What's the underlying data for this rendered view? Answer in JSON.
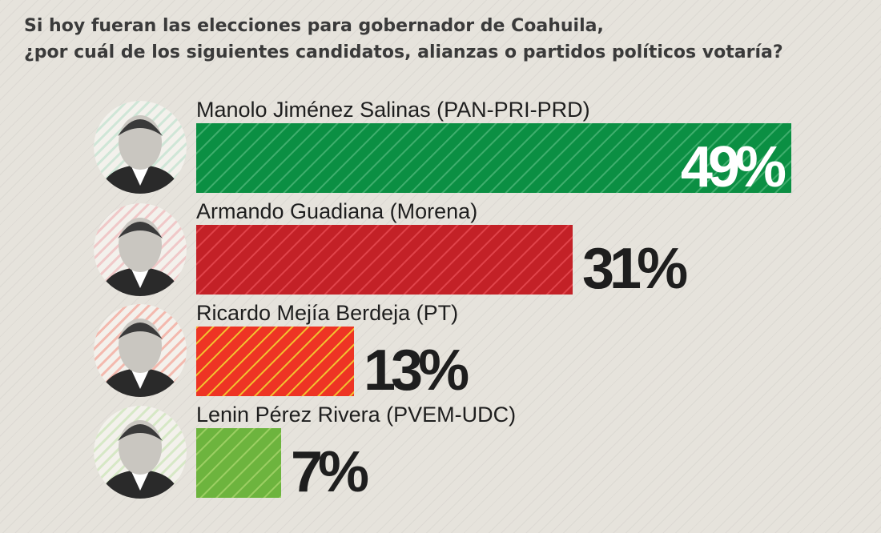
{
  "title_lines": [
    "Si hoy fueran las elecciones para gobernador de Coahuila,",
    "¿por cuál de los siguientes candidatos, alianzas o partidos políticos votaría?"
  ],
  "chart_data": {
    "type": "bar",
    "orientation": "horizontal",
    "title": "Si hoy fueran las elecciones para gobernador de Coahuila, ¿por cuál de los siguientes candidatos, alianzas o partidos políticos votaría?",
    "categories": [
      "Manolo Jiménez Salinas (PAN-PRI-PRD)",
      "Armando Guadiana (Morena)",
      "Ricardo Mejía Berdeja (PT)",
      "Lenin Pérez Rivera (PVEM-UDC)"
    ],
    "values": [
      49,
      31,
      13,
      7
    ],
    "value_labels": [
      "49%",
      "31%",
      "13%",
      "7%"
    ],
    "unit": "%",
    "xlim": [
      0,
      49
    ],
    "colors": [
      "#0b8f43",
      "#c32127",
      "#ee3424",
      "#6db43e"
    ],
    "stripe_colors": [
      "#3fae6d",
      "#e0434a",
      "#f2c230",
      "#9ccf63"
    ],
    "label_colors": [
      "#ffffff",
      "#1e1e1e",
      "#1e1e1e",
      "#1e1e1e"
    ],
    "photo_tints": [
      "#cfe6d7",
      "#f0c8c8",
      "#f3b9ae",
      "#d6e8c6"
    ],
    "grid": false,
    "legend": "none"
  }
}
